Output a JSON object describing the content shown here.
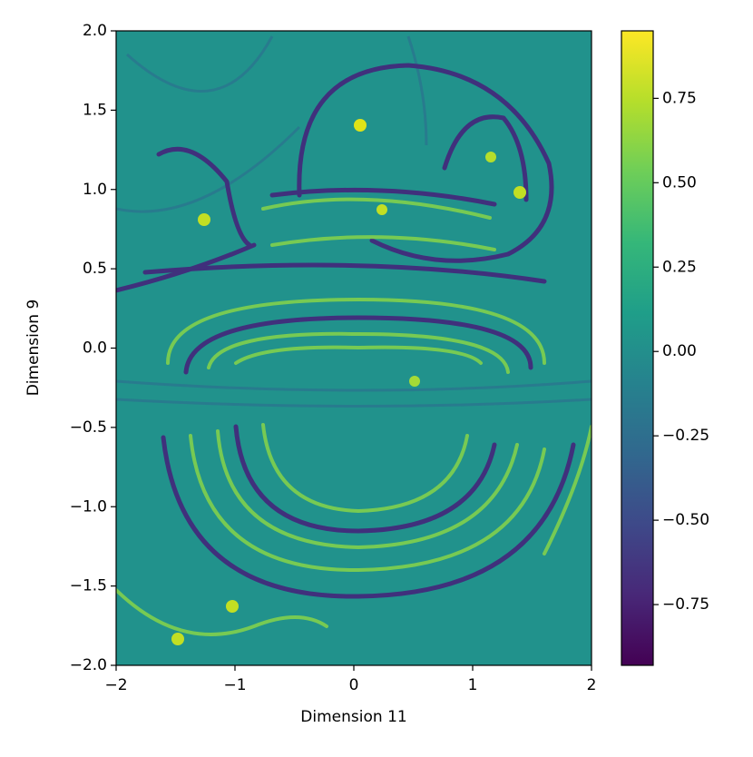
{
  "chart_data": {
    "type": "heatmap",
    "colormap": "viridis",
    "xlabel": "Dimension 11",
    "ylabel": "Dimension 9",
    "xlim": [
      -2,
      2
    ],
    "ylim": [
      -2,
      2
    ],
    "xticks": [
      {
        "value": -2,
        "label": "−2"
      },
      {
        "value": -1,
        "label": "−1"
      },
      0,
      1,
      2
    ],
    "yticks": [
      {
        "value": -2,
        "label": "−2.0"
      },
      {
        "value": -1.5,
        "label": "−1.5"
      },
      {
        "value": -1,
        "label": "−1.0"
      },
      {
        "value": -0.5,
        "label": "−0.5"
      },
      {
        "value": 0,
        "label": "0.0"
      },
      0.5,
      {
        "value": 1,
        "label": "1.0"
      },
      1.5,
      {
        "value": 2,
        "label": "2.0"
      }
    ],
    "clim": [
      -0.93,
      0.95
    ],
    "cticks": [
      {
        "value": -0.75,
        "label": "−0.75"
      },
      {
        "value": -0.5,
        "label": "−0.50"
      },
      {
        "value": -0.25,
        "label": "−0.25"
      },
      {
        "value": 0,
        "label": "0.00"
      },
      0.25,
      {
        "value": 0.5,
        "label": "0.50"
      },
      0.75
    ]
  }
}
